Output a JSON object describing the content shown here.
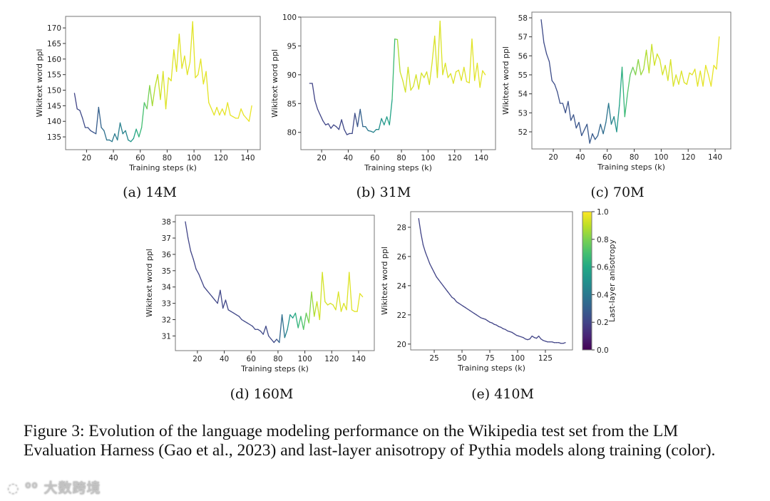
{
  "chart_data": [
    {
      "type": "line",
      "panel": "(a) 14M",
      "xlabel": "Training steps (k)",
      "ylabel": "Wikitext word ppl",
      "xlim": [
        4.4,
        149.3
      ],
      "ylim": [
        130.9,
        173.7
      ],
      "xticks": [
        20,
        40,
        60,
        80,
        100,
        120,
        140
      ],
      "yticks": [
        135,
        140,
        145,
        150,
        155,
        160,
        165,
        170
      ],
      "x_start": 11,
      "x_step": 2,
      "y": [
        149,
        144,
        143.5,
        141,
        138,
        138,
        137,
        136.5,
        136,
        144.5,
        138,
        137,
        134,
        134,
        133.5,
        136,
        134,
        139.5,
        136,
        137,
        134,
        133.5,
        134.5,
        137.5,
        135,
        138,
        146,
        144,
        151.5,
        145,
        151,
        155,
        147,
        156,
        144,
        154,
        153,
        163,
        156,
        168,
        157,
        161,
        155,
        159,
        172,
        154,
        155,
        160,
        152,
        156,
        146,
        144,
        142,
        144.5,
        142,
        144,
        142,
        146,
        142,
        141.5,
        141,
        141,
        144,
        142,
        141,
        140,
        145
      ],
      "anisotropy_keypoints": [
        [
          11,
          0.2
        ],
        [
          25,
          0.25
        ],
        [
          35,
          0.38
        ],
        [
          50,
          0.45
        ],
        [
          57,
          0.6
        ],
        [
          63,
          0.72
        ],
        [
          70,
          0.88
        ],
        [
          78,
          0.95
        ],
        [
          143,
          0.97
        ]
      ]
    },
    {
      "type": "line",
      "panel": "(b) 31M",
      "xlabel": "Training steps (k)",
      "ylabel": "Wikitext word ppl",
      "xlim": [
        4.4,
        150.7
      ],
      "ylim": [
        77,
        100
      ],
      "xticks": [
        20,
        40,
        60,
        80,
        100,
        120,
        140
      ],
      "yticks": [
        80,
        85,
        90,
        95,
        100
      ],
      "x_start": 11,
      "x_step": 2,
      "y": [
        88.5,
        88.5,
        85.5,
        84,
        83,
        82,
        81.3,
        81.5,
        80.7,
        81.3,
        81,
        80.5,
        82.2,
        80.5,
        79.6,
        79.8,
        79.8,
        83.3,
        81,
        84,
        81,
        81,
        80.3,
        80.2,
        80,
        80.5,
        80.5,
        82.4,
        81.3,
        82.7,
        81.3,
        85.7,
        96.2,
        96.1,
        90.5,
        89,
        87,
        91.3,
        87.3,
        88,
        90,
        87.5,
        90.3,
        89.5,
        90.5,
        88.3,
        92,
        96.7,
        89.5,
        99.3,
        90,
        92,
        89.5,
        90.2,
        88.5,
        90.5,
        90.8,
        89,
        91.3,
        88.8,
        88.6,
        96.2,
        89,
        92,
        87.8,
        90.7,
        90
      ],
      "anisotropy_keypoints": [
        [
          11,
          0.2
        ],
        [
          45,
          0.22
        ],
        [
          55,
          0.4
        ],
        [
          65,
          0.5
        ],
        [
          72,
          0.58
        ],
        [
          75,
          0.72
        ],
        [
          79,
          0.93
        ],
        [
          143,
          0.96
        ]
      ]
    },
    {
      "type": "line",
      "panel": "(c) 70M",
      "xlabel": "Training steps (k)",
      "ylabel": "Wikitext word ppl",
      "xlim": [
        4.1,
        151.6
      ],
      "ylim": [
        51.1,
        58.3
      ],
      "xticks": [
        20,
        40,
        60,
        80,
        100,
        120,
        140
      ],
      "yticks": [
        52,
        53,
        54,
        55,
        56,
        57,
        58
      ],
      "x_start": 11,
      "x_step": 2,
      "y": [
        57.9,
        56.7,
        56.1,
        55.7,
        54.7,
        54.5,
        54.1,
        53.5,
        53.5,
        53.0,
        53.6,
        52.6,
        52.9,
        52.2,
        52.5,
        51.8,
        52.1,
        52.4,
        51.4,
        51.9,
        51.6,
        51.8,
        52.4,
        51.9,
        52.5,
        53.5,
        52.4,
        52.8,
        52.0,
        53.4,
        55.4,
        52.8,
        54.0,
        55.0,
        55.4,
        55.0,
        55.8,
        55.0,
        55.3,
        56.3,
        55.1,
        56.6,
        55.5,
        56.1,
        55.8,
        55.0,
        55.5,
        54.7,
        55.8,
        54.4,
        55.0,
        54.5,
        55.2,
        54.6,
        54.5,
        55.1,
        55.0,
        55.3,
        54.4,
        55.2,
        54.4,
        55.5,
        55.0,
        54.4,
        55.5,
        55.3,
        57.0
      ],
      "anisotropy_keypoints": [
        [
          11,
          0.22
        ],
        [
          50,
          0.28
        ],
        [
          60,
          0.38
        ],
        [
          67,
          0.5
        ],
        [
          72,
          0.65
        ],
        [
          80,
          0.8
        ],
        [
          95,
          0.93
        ],
        [
          143,
          0.97
        ]
      ]
    },
    {
      "type": "line",
      "panel": "(d) 160M",
      "xlabel": "Training steps (k)",
      "ylabel": "Wikitext word ppl",
      "xlim": [
        3.6,
        151.7
      ],
      "ylim": [
        30.1,
        38.4
      ],
      "xticks": [
        20,
        40,
        60,
        80,
        100,
        120,
        140
      ],
      "yticks": [
        31,
        32,
        33,
        34,
        35,
        36,
        37,
        38
      ],
      "x_start": 11,
      "x_step": 2,
      "y": [
        38,
        37,
        36.2,
        35.7,
        35.1,
        34.8,
        34.4,
        34.0,
        33.8,
        33.6,
        33.4,
        33.2,
        33.0,
        33.8,
        32.7,
        33.2,
        32.6,
        32.5,
        32.4,
        32.3,
        32.2,
        32.0,
        31.9,
        31.8,
        31.7,
        31.6,
        31.4,
        31.4,
        31.3,
        31.1,
        31.6,
        31.0,
        30.8,
        30.6,
        30.8,
        30.6,
        32.3,
        30.9,
        31.4,
        32.3,
        32.1,
        32.4,
        31.5,
        32.2,
        31.4,
        32.4,
        31.8,
        33.7,
        32.2,
        33.1,
        32.0,
        34.9,
        33.1,
        32.9,
        33.0,
        32.9,
        32.6,
        33.7,
        32.5,
        33.0,
        32.6,
        34.9,
        32.6,
        32.5,
        32.5,
        33.6,
        33.4
      ],
      "anisotropy_keypoints": [
        [
          11,
          0.2
        ],
        [
          78,
          0.22
        ],
        [
          83,
          0.35
        ],
        [
          88,
          0.5
        ],
        [
          95,
          0.65
        ],
        [
          103,
          0.8
        ],
        [
          110,
          0.93
        ],
        [
          143,
          0.96
        ]
      ]
    },
    {
      "type": "line",
      "panel": "(e) 410M",
      "xlabel": "Training steps (k)",
      "ylabel": "Wikitext word ppl",
      "xlim": [
        3.8,
        149.4
      ],
      "ylim": [
        19.6,
        29.07
      ],
      "xticks": [
        25,
        50,
        75,
        100,
        125
      ],
      "yticks": [
        20,
        22,
        24,
        26,
        28
      ],
      "x_start": 11,
      "x_step": 2,
      "y": [
        28.6,
        27.6,
        26.8,
        26.3,
        25.9,
        25.5,
        25.2,
        24.9,
        24.6,
        24.4,
        24.2,
        24.0,
        23.8,
        23.6,
        23.4,
        23.2,
        23.1,
        22.9,
        22.8,
        22.7,
        22.6,
        22.5,
        22.4,
        22.3,
        22.2,
        22.1,
        22.0,
        21.9,
        21.8,
        21.75,
        21.7,
        21.6,
        21.5,
        21.45,
        21.35,
        21.3,
        21.2,
        21.15,
        21.05,
        21.0,
        20.9,
        20.85,
        20.8,
        20.7,
        20.6,
        20.55,
        20.5,
        20.45,
        20.35,
        20.3,
        20.35,
        20.55,
        20.45,
        20.4,
        20.55,
        20.35,
        20.25,
        20.2,
        20.15,
        20.15,
        20.15,
        20.1,
        20.1,
        20.1,
        20.05,
        20.05,
        20.1
      ],
      "anisotropy_keypoints": [
        [
          11,
          0.2
        ],
        [
          143,
          0.2
        ]
      ]
    }
  ],
  "colorbar": {
    "label": "Last-layer anisotropy",
    "range": [
      0.0,
      1.0
    ],
    "ticks": [
      "0.0",
      "0.2",
      "0.4",
      "0.6",
      "0.8",
      "1.0"
    ],
    "colormap": [
      "#440154",
      "#482475",
      "#414487",
      "#355f8d",
      "#2a788e",
      "#21918c",
      "#22a884",
      "#44bf70",
      "#7ad151",
      "#bddf26",
      "#fde725"
    ]
  },
  "caption": "Figure 3: Evolution of the language modeling performance on the Wikipedia test set from the LM Evaluation Harness (Gao et al., 2023) and last-layer anisotropy of Pythia models along training (color).",
  "watermark": "大数跨境"
}
